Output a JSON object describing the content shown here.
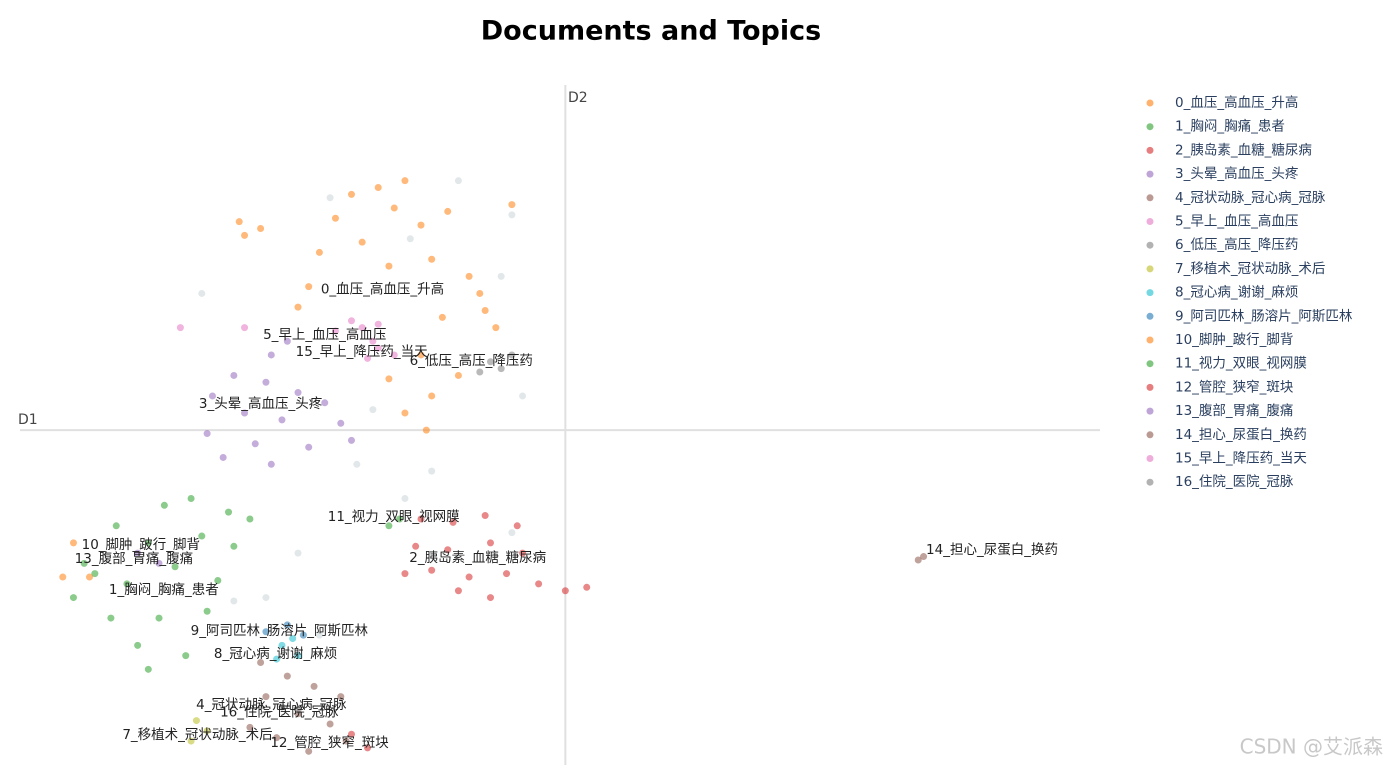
{
  "chart_data": {
    "type": "scatter",
    "title": "Documents and Topics",
    "x_label": "D1",
    "y_label": "D2",
    "xlim": [
      -10.2,
      10
    ],
    "ylim": [
      -9.8,
      10.1
    ],
    "legend": "top-right",
    "watermark": "CSDN @艾派森",
    "background_points": {
      "color": "#cfd8dc",
      "x": [
        -2.0,
        -1.0,
        -0.8,
        -3.9,
        -2.5,
        -6.2,
        -4.6,
        -3.0,
        -5.0,
        -1.0,
        -1.2,
        -6.8,
        -4.4,
        -2.9,
        -5.6,
        -3.6
      ],
      "values": [
        7.3,
        6.3,
        1.0,
        -1.0,
        -1.2,
        -5.0,
        -6.0,
        -2.0,
        -3.6,
        -3.0,
        4.5,
        4.0,
        6.8,
        5.6,
        -4.9,
        0.6
      ]
    },
    "series": [
      {
        "name": "0_血压_高血压_升高",
        "color": "#ff7f0e",
        "x": [
          -4.0,
          -3.5,
          -3.0,
          -3.2,
          -4.3,
          -2.7,
          -2.2,
          -3.8,
          -4.6,
          -2.5,
          -1.8,
          -3.3,
          -4.8,
          -1.5,
          -1.3,
          -2.3,
          -5.0,
          -2.7,
          -3.3,
          -2.5,
          -2.0,
          -3.0,
          -2.6,
          -6.1,
          -6.0,
          -5.7,
          -1.0,
          -1.6
        ],
        "values": [
          6.9,
          7.1,
          7.3,
          6.5,
          6.2,
          6.0,
          6.4,
          5.5,
          5.2,
          5.0,
          4.5,
          4.8,
          4.2,
          3.5,
          3.0,
          3.3,
          3.6,
          2.2,
          1.5,
          1.0,
          1.6,
          0.5,
          0.0,
          6.1,
          5.7,
          5.9,
          6.6,
          4.0
        ]
      },
      {
        "name": "1_胸闷_胸痛_患者",
        "color": "#2ca02c",
        "x": [
          -7.5,
          -7.0,
          -6.3,
          -8.4,
          -7.8,
          -6.8,
          -8.8,
          -9.2,
          -8.2,
          -7.3,
          -6.5,
          -8.5,
          -7.6,
          -6.7,
          -8.0,
          -7.1,
          -7.8,
          -6.2,
          -5.9,
          -9.0
        ],
        "values": [
          -2.2,
          -2.0,
          -2.4,
          -2.8,
          -3.3,
          -3.1,
          -4.2,
          -4.9,
          -4.5,
          -4.0,
          -4.4,
          -5.5,
          -5.5,
          -5.3,
          -6.3,
          -6.6,
          -7.0,
          -3.4,
          -2.6,
          -3.9
        ]
      },
      {
        "name": "2_胰岛素_血糖_糖尿病",
        "color": "#d62728",
        "x": [
          -2.7,
          -2.1,
          -1.5,
          -0.9,
          -2.8,
          -2.2,
          -1.4,
          -0.8,
          -2.5,
          -1.8,
          -1.1,
          -0.5,
          0.0,
          0.4,
          -1.4,
          -2.0,
          -3.0
        ],
        "values": [
          -2.6,
          -2.7,
          -2.5,
          -2.8,
          -3.4,
          -3.5,
          -3.3,
          -3.6,
          -4.1,
          -4.3,
          -4.2,
          -4.5,
          -4.7,
          -4.6,
          -4.9,
          -4.7,
          -4.2
        ]
      },
      {
        "name": "3_头晕_高血压_头疼",
        "color": "#9467bd",
        "x": [
          -5.5,
          -6.2,
          -5.6,
          -6.6,
          -5.0,
          -4.5,
          -6.0,
          -5.3,
          -4.2,
          -6.7,
          -5.8,
          -4.8,
          -6.4,
          -5.5,
          -4.0,
          -5.2
        ],
        "values": [
          2.2,
          1.6,
          1.4,
          1.0,
          1.1,
          0.8,
          0.5,
          0.3,
          0.2,
          -0.1,
          -0.4,
          -0.5,
          -0.8,
          -1.0,
          -0.3,
          2.6
        ]
      },
      {
        "name": "4_冠状动脉_冠心病_冠脉",
        "color": "#8c564b",
        "x": [
          -5.7,
          -5.2,
          -4.7,
          -4.2,
          -5.6,
          -5.0,
          -4.4,
          -5.4,
          -4.8,
          -4.1,
          -5.9
        ],
        "values": [
          -6.8,
          -7.2,
          -7.5,
          -7.8,
          -7.8,
          -8.3,
          -8.6,
          -9.0,
          -9.4,
          -9.1,
          -8.7
        ]
      },
      {
        "name": "5_早上_血压_高血压",
        "color": "#e377c2",
        "x": [
          -4.0,
          -3.8,
          -3.5,
          -4.3,
          -3.6,
          -7.2,
          -6.0
        ],
        "values": [
          3.2,
          3.0,
          3.1,
          2.9,
          2.6,
          3.0,
          3.0
        ]
      },
      {
        "name": "6_低压_高压_降压药",
        "color": "#7f7f7f",
        "x": [
          -1.4,
          -1.2,
          -1.0,
          -1.6
        ],
        "values": [
          2.0,
          1.8,
          2.2,
          1.7
        ]
      },
      {
        "name": "7_移植术_冠状动脉_术后",
        "color": "#bcbd22",
        "x": [
          -7.0,
          -6.7,
          -6.9
        ],
        "values": [
          -9.1,
          -8.8,
          -8.5
        ]
      },
      {
        "name": "8_冠心病_谢谢_麻烦",
        "color": "#17becf",
        "x": [
          -5.3,
          -5.0,
          -5.4,
          -5.1
        ],
        "values": [
          -6.3,
          -6.6,
          -6.7,
          -6.1
        ]
      },
      {
        "name": "9_阿司匹林_肠溶片_阿斯匹林",
        "color": "#1f77b4",
        "x": [
          -5.6,
          -5.2,
          -4.9
        ],
        "values": [
          -5.9,
          -5.7,
          -6.0
        ]
      },
      {
        "name": "10_脚肿_跛行_脚背",
        "color": "#ff7f0e",
        "x": [
          -9.2,
          -9.4,
          -8.9
        ],
        "values": [
          -3.3,
          -4.3,
          -4.3
        ]
      },
      {
        "name": "11_视力_双眼_视网膜",
        "color": "#2ca02c",
        "x": [
          -3.1,
          -3.3
        ],
        "values": [
          -2.6,
          -2.8
        ]
      },
      {
        "name": "12_管腔_狭窄_斑块",
        "color": "#d62728",
        "x": [
          -3.7,
          -4.0
        ],
        "values": [
          -9.3,
          -8.9
        ]
      },
      {
        "name": "13_腹部_胃痛_腹痛",
        "color": "#9467bd",
        "x": [
          -8.0,
          -7.6
        ],
        "values": [
          -3.6,
          -3.9
        ]
      },
      {
        "name": "14_担心_尿蛋白_换药",
        "color": "#8c564b",
        "x": [
          6.6,
          6.7
        ],
        "values": [
          -3.8,
          -3.7
        ]
      },
      {
        "name": "15_早上_降压药_当天",
        "color": "#e377c2",
        "x": [
          -3.5,
          -3.2,
          -3.7
        ],
        "values": [
          2.4,
          2.2,
          2.1
        ]
      },
      {
        "name": "16_住院_医院_冠脉",
        "color": "#7f7f7f",
        "x": [
          -5.3,
          -5.0
        ],
        "values": [
          -8.1,
          -8.2
        ]
      }
    ],
    "annotations": [
      {
        "text": "0_血压_高血压_升高",
        "x": -3.42,
        "y": 4.12
      },
      {
        "text": "1_胸闷_胸痛_患者",
        "x": -7.51,
        "y": -4.68
      },
      {
        "text": "2_胰岛素_血糖_糖尿病",
        "x": -1.64,
        "y": -3.74
      },
      {
        "text": "3_头晕_高血压_头疼",
        "x": -5.7,
        "y": 0.76
      },
      {
        "text": "4_冠状动脉_冠心病_冠脉",
        "x": -5.5,
        "y": -8.04
      },
      {
        "text": "5_早上_血压_高血压",
        "x": -4.5,
        "y": 2.78
      },
      {
        "text": "6_低压_高压_降压药",
        "x": -1.76,
        "y": 2.02
      },
      {
        "text": "7_移植术_冠状动脉_术后",
        "x": -6.88,
        "y": -8.92
      },
      {
        "text": "8_冠心病_谢谢_麻烦",
        "x": -5.42,
        "y": -6.55
      },
      {
        "text": "9_阿司匹林_肠溶片_阿斯匹林",
        "x": -5.35,
        "y": -5.88
      },
      {
        "text": "10_脚肿_跛行_脚背",
        "x": -7.94,
        "y": -3.36
      },
      {
        "text": "11_视力_双眼_视网膜",
        "x": -3.21,
        "y": -2.54
      },
      {
        "text": "12_管腔_狭窄_斑块",
        "x": -4.41,
        "y": -9.15
      },
      {
        "text": "13_腹部_胃痛_腹痛",
        "x": -8.07,
        "y": -3.77
      },
      {
        "text": "14_担心_尿蛋白_换药",
        "x": 7.98,
        "y": -3.51
      },
      {
        "text": "15_早上_降压药_当天",
        "x": -3.81,
        "y": 2.28
      },
      {
        "text": "16_住院_医院_冠脉",
        "x": -5.35,
        "y": -8.27
      }
    ]
  }
}
